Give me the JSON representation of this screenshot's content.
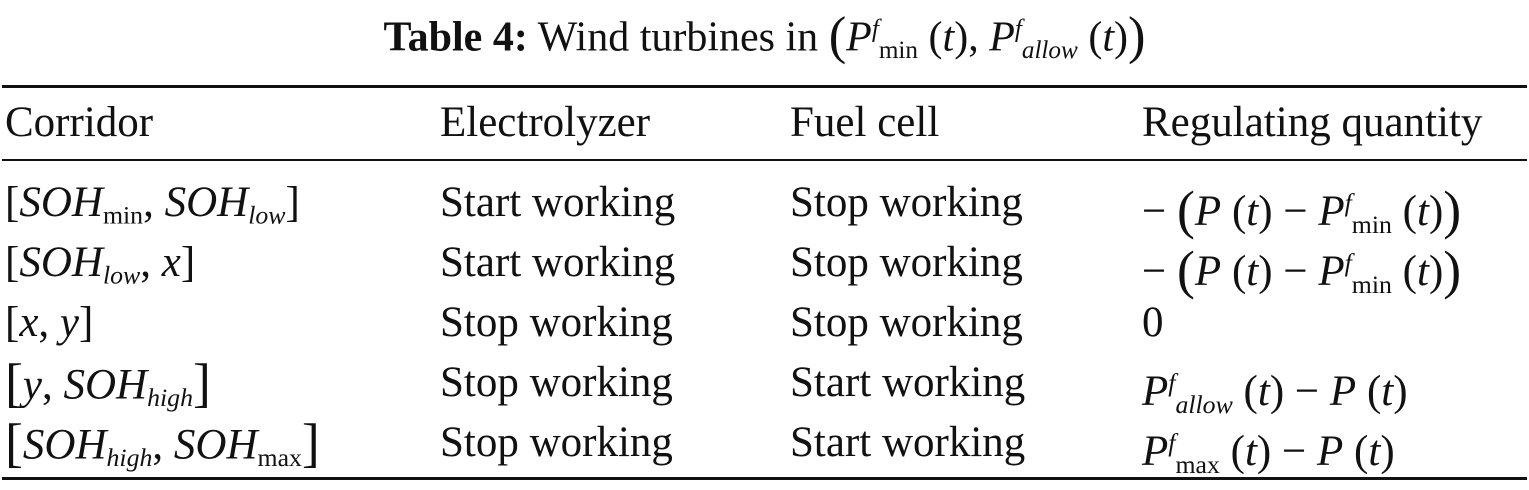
{
  "title": {
    "label": "Table 4:",
    "text": "Wind turbines in",
    "expr": [
      "(",
      "P",
      "f",
      "min",
      "(",
      "t",
      ")",
      ", ",
      "P",
      "f",
      "allow",
      "(",
      "t",
      ")",
      ")"
    ]
  },
  "table": {
    "header": [
      "Corridor",
      "Electrolyzer",
      "Fuel cell",
      "Regulating quantity"
    ],
    "rows": [
      [
        [
          "[",
          "SOH",
          "min",
          ", ",
          "SOH",
          "low",
          "]"
        ],
        "Start working",
        "Stop working",
        [
          "−",
          "(",
          "P",
          "(",
          "t",
          ")",
          "−",
          "P",
          "f",
          "min",
          "(",
          "t",
          ")",
          ")"
        ]
      ],
      [
        [
          "[",
          "SOH",
          "low",
          ", ",
          "x",
          "]"
        ],
        "Start working",
        "Stop working",
        [
          "−",
          "(",
          "P",
          "(",
          "t",
          ")",
          "−",
          "P",
          "f",
          "min",
          "(",
          "t",
          ")",
          ")"
        ]
      ],
      [
        [
          "[",
          "x",
          ", ",
          "y",
          "]"
        ],
        "Stop working",
        "Stop working",
        "0"
      ],
      [
        [
          "[",
          "y",
          ", ",
          "SOH",
          "high",
          "]"
        ],
        "Stop working",
        "Start working",
        [
          "P",
          "f",
          "allow",
          "(",
          "t",
          ")",
          "−",
          "P",
          "(",
          "t",
          ")"
        ]
      ],
      [
        [
          "[",
          "SOH",
          "high",
          ", ",
          "SOH",
          "max",
          "]"
        ],
        "Stop working",
        "Start working",
        [
          "P",
          "f",
          "max",
          "(",
          "t",
          ")",
          "−",
          "P",
          "(",
          "t",
          ")"
        ]
      ]
    ]
  }
}
